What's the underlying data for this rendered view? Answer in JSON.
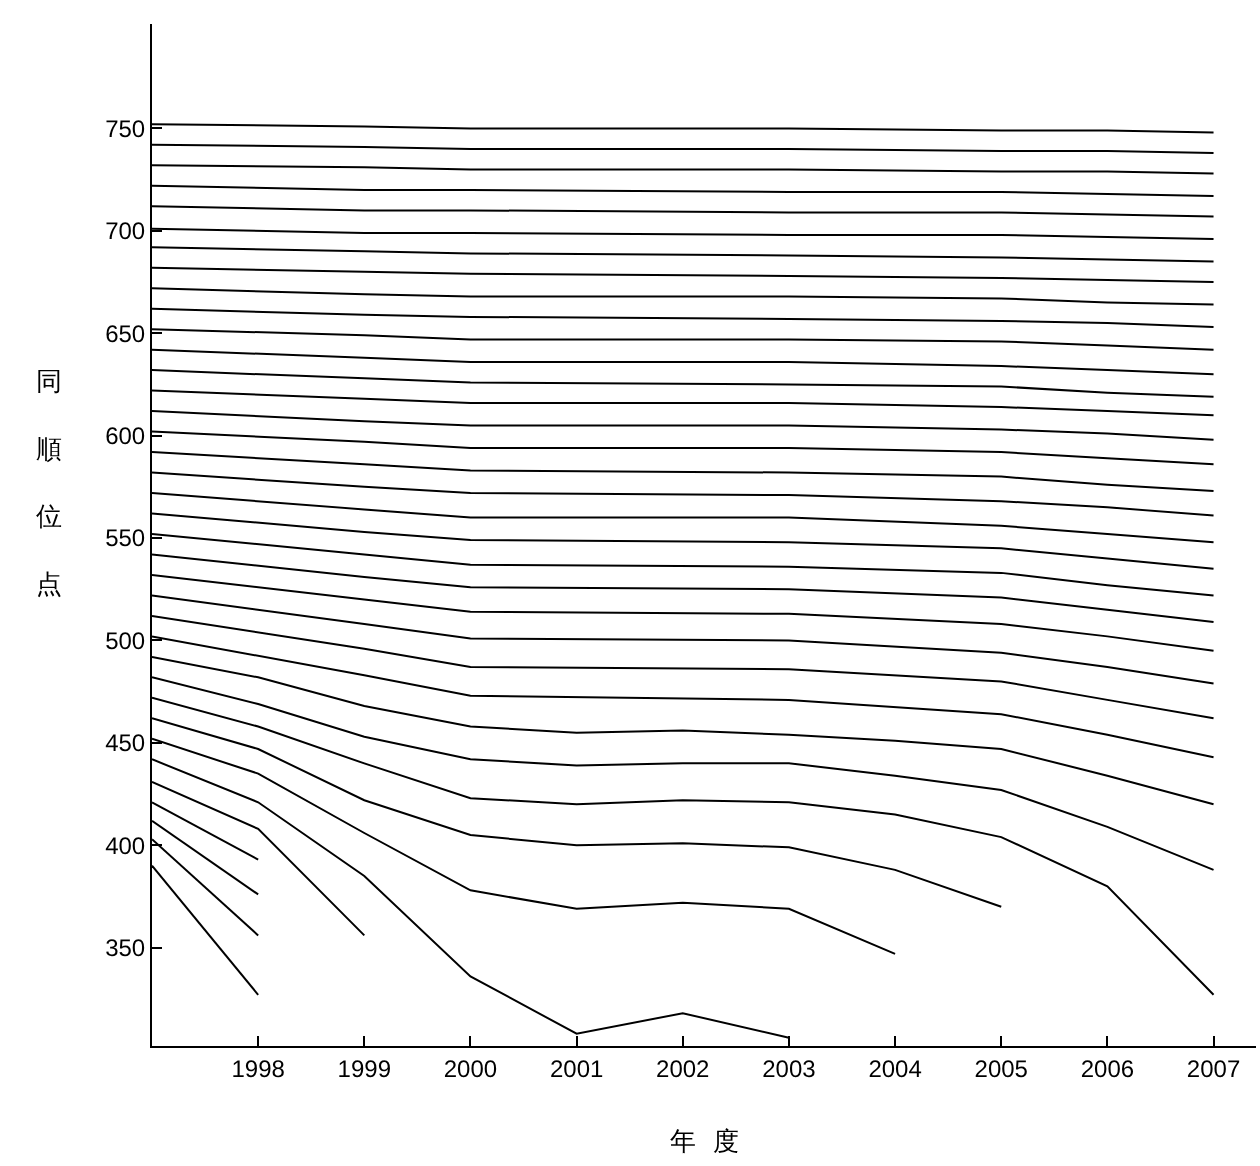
{
  "chart_data": {
    "type": "line",
    "xlabel": "年度",
    "ylabel": "同順位点",
    "xlim": [
      1997,
      2007.4
    ],
    "ylim": [
      302,
      801
    ],
    "xticks": [
      1998,
      1999,
      2000,
      2001,
      2002,
      2003,
      2004,
      2005,
      2006,
      2007
    ],
    "yticks": [
      350,
      400,
      450,
      500,
      550,
      600,
      650,
      700,
      750
    ],
    "grid": false,
    "marker": "none",
    "line_style": "solid",
    "series": [
      {
        "color": "#000000",
        "x": [
          1997,
          1998
        ],
        "values": [
          390,
          327
        ]
      },
      {
        "color": "#000000",
        "x": [
          1997,
          1998
        ],
        "values": [
          403,
          356
        ]
      },
      {
        "color": "#000000",
        "x": [
          1997,
          1998
        ],
        "values": [
          412,
          376
        ]
      },
      {
        "color": "#000000",
        "x": [
          1997,
          1998
        ],
        "values": [
          421,
          393
        ]
      },
      {
        "color": "#000000",
        "x": [
          1997,
          1998,
          1999
        ],
        "values": [
          431,
          408,
          356
        ]
      },
      {
        "color": "#000000",
        "x": [
          1997,
          1998,
          1999,
          2000,
          2001,
          2002,
          2003
        ],
        "values": [
          442,
          421,
          385,
          336,
          308,
          318,
          306
        ]
      },
      {
        "color": "#000000",
        "x": [
          1997,
          1998,
          1999,
          2000,
          2001,
          2002,
          2003,
          2004
        ],
        "values": [
          452,
          435,
          406,
          378,
          369,
          372,
          369,
          347
        ]
      },
      {
        "color": "#000000",
        "x": [
          1997,
          1998,
          1999,
          2000,
          2001,
          2002,
          2003,
          2004,
          2005
        ],
        "values": [
          462,
          447,
          422,
          405,
          400,
          401,
          399,
          388,
          370
        ]
      },
      {
        "color": "#000000",
        "x": [
          1997,
          1998,
          1999,
          2000,
          2001,
          2002,
          2003,
          2004,
          2005,
          2006,
          2007
        ],
        "values": [
          472,
          458,
          440,
          423,
          420,
          422,
          421,
          415,
          404,
          380,
          327
        ]
      },
      {
        "color": "#000000",
        "x": [
          1997,
          1998,
          1999,
          2000,
          2001,
          2002,
          2003,
          2004,
          2005,
          2006,
          2007
        ],
        "values": [
          482,
          469,
          453,
          442,
          439,
          440,
          440,
          434,
          427,
          409,
          388
        ]
      },
      {
        "color": "#000000",
        "x": [
          1997,
          1998,
          1999,
          2000,
          2001,
          2002,
          2003,
          2004,
          2005,
          2006,
          2007
        ],
        "values": [
          492,
          482,
          468,
          458,
          455,
          456,
          454,
          451,
          447,
          434,
          420
        ]
      },
      {
        "color": "#000000",
        "x": [
          1997,
          1999,
          2000,
          2003,
          2005,
          2006,
          2007
        ],
        "values": [
          502,
          483,
          473,
          471,
          464,
          454,
          443
        ]
      },
      {
        "color": "#000000",
        "x": [
          1997,
          1999,
          2000,
          2003,
          2005,
          2006,
          2007
        ],
        "values": [
          512,
          496,
          487,
          486,
          480,
          471,
          462
        ]
      },
      {
        "color": "#000000",
        "x": [
          1997,
          1999,
          2000,
          2003,
          2005,
          2006,
          2007
        ],
        "values": [
          522,
          508,
          501,
          500,
          494,
          487,
          479
        ]
      },
      {
        "color": "#000000",
        "x": [
          1997,
          1999,
          2000,
          2003,
          2005,
          2006,
          2007
        ],
        "values": [
          532,
          520,
          514,
          513,
          508,
          502,
          495
        ]
      },
      {
        "color": "#000000",
        "x": [
          1997,
          1999,
          2000,
          2003,
          2005,
          2006,
          2007
        ],
        "values": [
          542,
          531,
          526,
          525,
          521,
          515,
          509
        ]
      },
      {
        "color": "#000000",
        "x": [
          1997,
          1999,
          2000,
          2003,
          2005,
          2006,
          2007
        ],
        "values": [
          552,
          542,
          537,
          536,
          533,
          527,
          522
        ]
      },
      {
        "color": "#000000",
        "x": [
          1997,
          1999,
          2000,
          2003,
          2005,
          2006,
          2007
        ],
        "values": [
          562,
          553,
          549,
          548,
          545,
          540,
          535
        ]
      },
      {
        "color": "#000000",
        "x": [
          1997,
          1999,
          2000,
          2003,
          2005,
          2006,
          2007
        ],
        "values": [
          572,
          564,
          560,
          560,
          556,
          552,
          548
        ]
      },
      {
        "color": "#000000",
        "x": [
          1997,
          1999,
          2000,
          2003,
          2005,
          2006,
          2007
        ],
        "values": [
          582,
          575,
          572,
          571,
          568,
          565,
          561
        ]
      },
      {
        "color": "#000000",
        "x": [
          1997,
          1999,
          2000,
          2003,
          2005,
          2006,
          2007
        ],
        "values": [
          592,
          586,
          583,
          582,
          580,
          576,
          573
        ]
      },
      {
        "color": "#000000",
        "x": [
          1997,
          1999,
          2000,
          2003,
          2005,
          2006,
          2007
        ],
        "values": [
          602,
          597,
          594,
          594,
          592,
          589,
          586
        ]
      },
      {
        "color": "#000000",
        "x": [
          1997,
          1999,
          2000,
          2003,
          2005,
          2006,
          2007
        ],
        "values": [
          612,
          607,
          605,
          605,
          603,
          601,
          598
        ]
      },
      {
        "color": "#000000",
        "x": [
          1997,
          1999,
          2000,
          2003,
          2005,
          2006,
          2007
        ],
        "values": [
          622,
          618,
          616,
          616,
          614,
          612,
          610
        ]
      },
      {
        "color": "#000000",
        "x": [
          1997,
          1999,
          2000,
          2003,
          2005,
          2006,
          2007
        ],
        "values": [
          632,
          628,
          626,
          625,
          624,
          621,
          619
        ]
      },
      {
        "color": "#000000",
        "x": [
          1997,
          1999,
          2000,
          2003,
          2005,
          2006,
          2007
        ],
        "values": [
          642,
          638,
          636,
          636,
          634,
          632,
          630
        ]
      },
      {
        "color": "#000000",
        "x": [
          1997,
          1999,
          2000,
          2003,
          2005,
          2006,
          2007
        ],
        "values": [
          652,
          649,
          647,
          647,
          646,
          644,
          642
        ]
      },
      {
        "color": "#000000",
        "x": [
          1997,
          1999,
          2000,
          2003,
          2005,
          2006,
          2007
        ],
        "values": [
          662,
          659,
          658,
          657,
          656,
          655,
          653
        ]
      },
      {
        "color": "#000000",
        "x": [
          1997,
          1999,
          2000,
          2003,
          2005,
          2006,
          2007
        ],
        "values": [
          672,
          669,
          668,
          668,
          667,
          665,
          664
        ]
      },
      {
        "color": "#000000",
        "x": [
          1997,
          1999,
          2000,
          2003,
          2005,
          2006,
          2007
        ],
        "values": [
          682,
          680,
          679,
          678,
          677,
          676,
          675
        ]
      },
      {
        "color": "#000000",
        "x": [
          1997,
          1999,
          2000,
          2003,
          2005,
          2006,
          2007
        ],
        "values": [
          692,
          690,
          689,
          688,
          687,
          686,
          685
        ]
      },
      {
        "color": "#000000",
        "x": [
          1997,
          1999,
          2000,
          2003,
          2005,
          2006,
          2007
        ],
        "values": [
          701,
          699,
          699,
          698,
          698,
          697,
          696
        ]
      },
      {
        "color": "#000000",
        "x": [
          1997,
          1999,
          2000,
          2003,
          2005,
          2006,
          2007
        ],
        "values": [
          712,
          710,
          710,
          709,
          709,
          708,
          707
        ]
      },
      {
        "color": "#000000",
        "x": [
          1997,
          1999,
          2000,
          2003,
          2005,
          2006,
          2007
        ],
        "values": [
          722,
          720,
          720,
          719,
          719,
          718,
          717
        ]
      },
      {
        "color": "#000000",
        "x": [
          1997,
          1999,
          2000,
          2003,
          2005,
          2006,
          2007
        ],
        "values": [
          732,
          731,
          730,
          730,
          729,
          729,
          728
        ]
      },
      {
        "color": "#000000",
        "x": [
          1997,
          1999,
          2000,
          2003,
          2005,
          2006,
          2007
        ],
        "values": [
          742,
          741,
          740,
          740,
          739,
          739,
          738
        ]
      },
      {
        "color": "#000000",
        "x": [
          1997,
          1999,
          2000,
          2003,
          2005,
          2006,
          2007
        ],
        "values": [
          752,
          751,
          750,
          750,
          749,
          749,
          748
        ]
      }
    ]
  }
}
